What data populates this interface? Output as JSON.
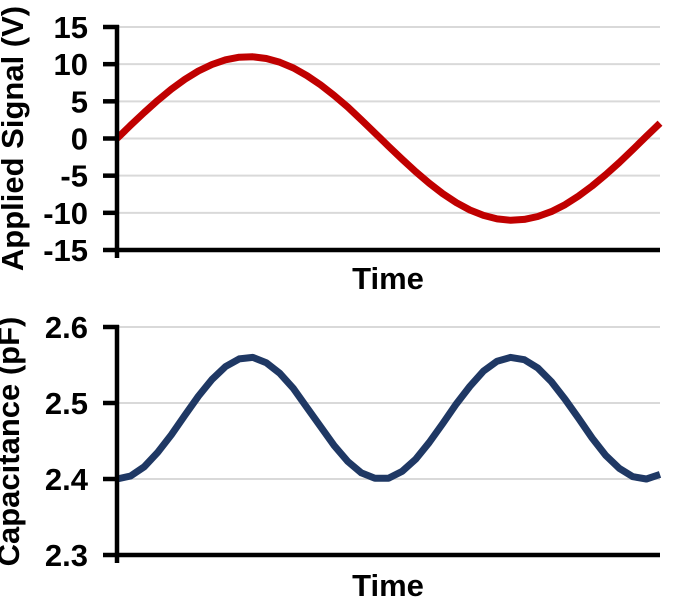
{
  "styles": {
    "background": "#FFFFFF",
    "grid_color": "#D9D9D9",
    "axis_color": "#000000",
    "text_color": "#000000",
    "signal_color": "#C00000",
    "capacitance_color": "#1F3864"
  },
  "chart_data": [
    {
      "type": "line",
      "title": "",
      "xlabel": "Time",
      "ylabel": "Applied Signal (V)",
      "ylim": [
        -15,
        15
      ],
      "yticks": [
        15,
        10,
        5,
        0,
        -5,
        -10,
        -15
      ],
      "ytick_labels": [
        "15",
        "10",
        "5",
        "0",
        "-5",
        "-10",
        "-15"
      ],
      "grid": "horizontal",
      "legend": null,
      "x_axis_note": "unlabeled time axis spanning ~one sinusoid period",
      "series": [
        {
          "name": "Applied Signal",
          "color": "#C00000",
          "line_width": 7,
          "amplitude_V": 11,
          "x_normalized_span": [
            0,
            1
          ],
          "values": [
            0.0,
            1.77,
            3.5,
            5.13,
            6.63,
            7.96,
            9.08,
            9.96,
            10.59,
            10.94,
            10.99,
            10.76,
            10.25,
            9.48,
            8.45,
            7.21,
            5.79,
            4.23,
            2.5,
            0.74,
            -1.03,
            -2.79,
            -4.46,
            -6.02,
            -7.43,
            -8.64,
            -9.62,
            -10.35,
            -10.82,
            -11.0,
            -10.89,
            -10.5,
            -9.83,
            -8.91,
            -7.75,
            -6.39,
            -4.87,
            -3.23,
            -1.48,
            0.29,
            2.06
          ]
        }
      ]
    },
    {
      "type": "line",
      "title": "",
      "xlabel": "Time",
      "ylabel": "Capacitance (pF)",
      "ylim": [
        2.3,
        2.6
      ],
      "yticks": [
        2.6,
        2.5,
        2.4,
        2.3
      ],
      "ytick_labels": [
        "2.6",
        "2.5",
        "2.4",
        "2.3"
      ],
      "grid": "horizontal",
      "legend": null,
      "x_axis_note": "unlabeled time axis; capacitance peaks twice per applied-signal period",
      "series": [
        {
          "name": "Capacitance",
          "color": "#1F3864",
          "line_width": 7,
          "min_pF": 2.4,
          "max_pF": 2.56,
          "x_normalized_span": [
            0,
            1
          ],
          "values": [
            2.4,
            2.404,
            2.416,
            2.435,
            2.458,
            2.484,
            2.509,
            2.531,
            2.548,
            2.558,
            2.56,
            2.553,
            2.539,
            2.519,
            2.494,
            2.469,
            2.444,
            2.423,
            2.408,
            2.401,
            2.401,
            2.41,
            2.426,
            2.448,
            2.473,
            2.499,
            2.522,
            2.542,
            2.555,
            2.56,
            2.557,
            2.546,
            2.528,
            2.505,
            2.48,
            2.454,
            2.431,
            2.414,
            2.403,
            2.4,
            2.406
          ]
        }
      ]
    }
  ]
}
